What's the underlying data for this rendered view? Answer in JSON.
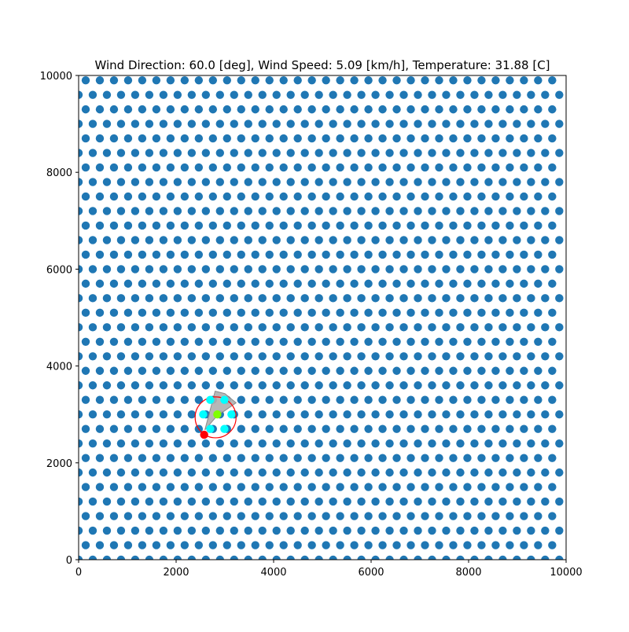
{
  "chart_data": {
    "type": "scatter",
    "title": "Wind Direction: 60.0 [deg], Wind Speed: 5.09 [km/h], Temperature: 31.88 [C]",
    "xlabel": "",
    "ylabel": "",
    "xlim": [
      0,
      10000
    ],
    "ylim": [
      0,
      10000
    ],
    "xticks": [
      0,
      2000,
      4000,
      6000,
      8000,
      10000
    ],
    "yticks": [
      0,
      2000,
      4000,
      6000,
      8000,
      10000
    ],
    "xtick_labels": [
      "0",
      "2000",
      "4000",
      "6000",
      "8000",
      "10000"
    ],
    "ytick_labels": [
      "0",
      "2000",
      "4000",
      "6000",
      "8000",
      "10000"
    ],
    "grid": false,
    "wind": {
      "direction_deg": 60.0,
      "speed_kmh": 5.09,
      "temperature_c": 31.88
    },
    "grid_points": {
      "description": "hexagonal lattice of field points",
      "color": "#1f77b4",
      "x_spacing": 290,
      "y_spacing": 300,
      "even_row_x_start": 0,
      "odd_row_x_start": 145,
      "y_start": 0,
      "x_max": 10000,
      "y_max": 10000
    },
    "circle": {
      "center": [
        2810,
        2940
      ],
      "radius": 420,
      "color": "#ff0000"
    },
    "cyan_points": {
      "color": "#00ffff",
      "points": [
        [
          2555,
          3000
        ],
        [
          3135,
          3000
        ],
        [
          2700,
          2700
        ],
        [
          2990,
          2700
        ],
        [
          2990,
          3300
        ],
        [
          2700,
          3300
        ]
      ]
    },
    "green_point": {
      "color": "#7fff00",
      "point": [
        2845,
        3000
      ]
    },
    "red_point": {
      "color": "#ff0000",
      "point": [
        2575,
        2580
      ]
    },
    "sector_polygon": {
      "fill": "#b0b0b0",
      "stroke": "#808080",
      "points": [
        [
          2590,
          2680
        ],
        [
          2800,
          3480
        ],
        [
          3000,
          3430
        ],
        [
          3230,
          3240
        ],
        [
          2830,
          2960
        ]
      ]
    }
  }
}
